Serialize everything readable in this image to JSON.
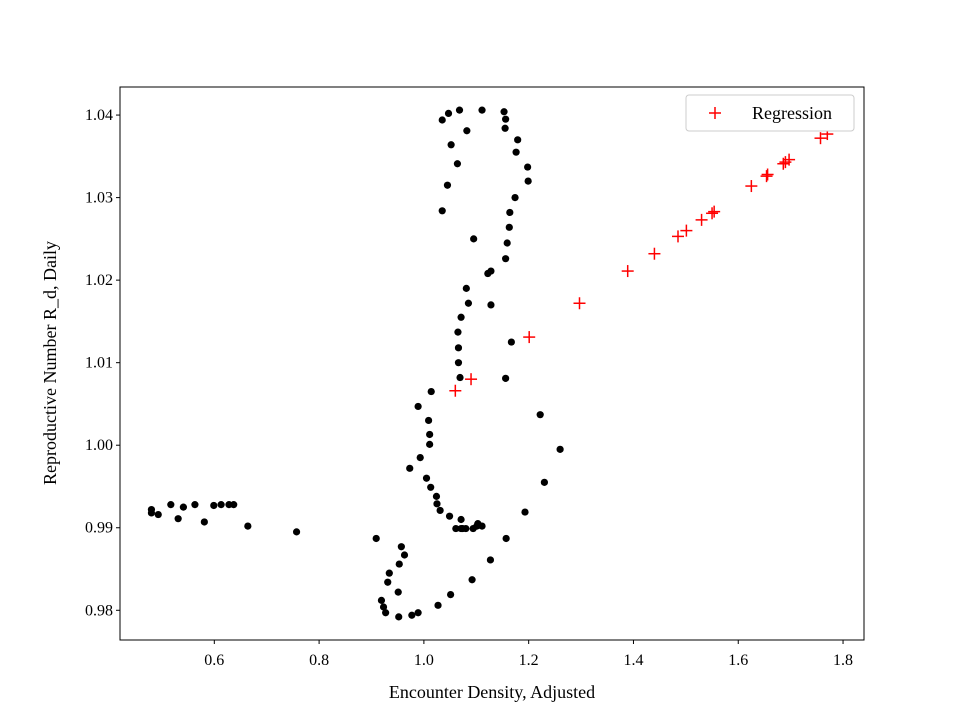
{
  "chart_data": {
    "type": "scatter",
    "title": "",
    "xlabel": "Encounter Density, Adjusted",
    "ylabel": "Reproductive Number R_d, Daily",
    "xlim": [
      0.42,
      1.84
    ],
    "ylim": [
      0.9764,
      1.0434
    ],
    "xticks": [
      0.6,
      0.8,
      1.0,
      1.2,
      1.4,
      1.6,
      1.8
    ],
    "xtick_labels": [
      "0.6",
      "0.8",
      "1.0",
      "1.2",
      "1.4",
      "1.6",
      "1.8"
    ],
    "yticks": [
      0.98,
      0.99,
      1.0,
      1.01,
      1.02,
      1.03,
      1.04
    ],
    "ytick_labels": [
      "0.98",
      "0.99",
      "1.00",
      "1.01",
      "1.02",
      "1.03",
      "1.04"
    ],
    "grid": false,
    "legend_position": "top-right",
    "series": [
      {
        "marker": "dot",
        "color": "#000000",
        "points": [
          [
            0.48,
            0.9922
          ],
          [
            0.48,
            0.9918
          ],
          [
            0.493,
            0.9916
          ],
          [
            0.517,
            0.9928
          ],
          [
            0.531,
            0.9911
          ],
          [
            0.541,
            0.9925
          ],
          [
            0.563,
            0.9928
          ],
          [
            0.581,
            0.9907
          ],
          [
            0.599,
            0.9927
          ],
          [
            0.613,
            0.9928
          ],
          [
            0.628,
            0.9928
          ],
          [
            0.637,
            0.9928
          ],
          [
            0.664,
            0.9902
          ],
          [
            0.757,
            0.9895
          ],
          [
            0.909,
            0.9887
          ],
          [
            0.919,
            0.9812
          ],
          [
            0.923,
            0.9804
          ],
          [
            0.927,
            0.9797
          ],
          [
            0.931,
            0.9834
          ],
          [
            0.934,
            0.9845
          ],
          [
            0.952,
            0.9792
          ],
          [
            0.951,
            0.9822
          ],
          [
            0.953,
            0.9856
          ],
          [
            0.957,
            0.9877
          ],
          [
            0.963,
            0.9867
          ],
          [
            0.973,
            0.9972
          ],
          [
            0.977,
            0.9794
          ],
          [
            0.989,
            0.9797
          ],
          [
            0.989,
            1.0047
          ],
          [
            0.993,
            0.9985
          ],
          [
            1.005,
            0.996
          ],
          [
            1.009,
            1.003
          ],
          [
            1.011,
            1.0001
          ],
          [
            1.011,
            1.0013
          ],
          [
            1.013,
            0.9949
          ],
          [
            1.014,
            1.0065
          ],
          [
            1.024,
            0.9938
          ],
          [
            1.025,
            0.9929
          ],
          [
            1.027,
            0.9806
          ],
          [
            1.031,
            0.9921
          ],
          [
            1.035,
            1.0394
          ],
          [
            1.035,
            1.0284
          ],
          [
            1.045,
            1.0315
          ],
          [
            1.047,
            1.0402
          ],
          [
            1.049,
            0.9914
          ],
          [
            1.051,
            0.9819
          ],
          [
            1.052,
            1.0364
          ],
          [
            1.061,
            0.9899
          ],
          [
            1.064,
            1.0341
          ],
          [
            1.065,
            1.0137
          ],
          [
            1.066,
            1.0118
          ],
          [
            1.066,
            1.01
          ],
          [
            1.068,
            1.0406
          ],
          [
            1.069,
            1.0082
          ],
          [
            1.071,
            1.0155
          ],
          [
            1.071,
            0.991
          ],
          [
            1.071,
            0.9899
          ],
          [
            1.074,
            0.9899
          ],
          [
            1.08,
            0.9899
          ],
          [
            1.081,
            1.019
          ],
          [
            1.082,
            1.0381
          ],
          [
            1.085,
            1.0172
          ],
          [
            1.092,
            0.9837
          ],
          [
            1.094,
            0.9899
          ],
          [
            1.095,
            1.025
          ],
          [
            1.101,
            0.9902
          ],
          [
            1.103,
            0.9905
          ],
          [
            1.111,
            0.9902
          ],
          [
            1.111,
            1.0406
          ],
          [
            1.122,
            1.0208
          ],
          [
            1.127,
            0.9861
          ],
          [
            1.128,
            1.017
          ],
          [
            1.128,
            1.0211
          ],
          [
            1.153,
            1.0404
          ],
          [
            1.155,
            1.0384
          ],
          [
            1.156,
            1.0226
          ],
          [
            1.156,
            1.0081
          ],
          [
            1.156,
            1.0395
          ],
          [
            1.157,
            0.9887
          ],
          [
            1.159,
            1.0245
          ],
          [
            1.163,
            1.0264
          ],
          [
            1.164,
            1.0282
          ],
          [
            1.167,
            1.0125
          ],
          [
            1.174,
            1.03
          ],
          [
            1.176,
            1.0355
          ],
          [
            1.179,
            1.037
          ],
          [
            1.193,
            0.9919
          ],
          [
            1.198,
            1.0337
          ],
          [
            1.199,
            1.032
          ],
          [
            1.222,
            1.0037
          ],
          [
            1.23,
            0.9955
          ],
          [
            1.26,
            0.9995
          ]
        ]
      },
      {
        "name": "Regression",
        "marker": "plus",
        "color": "#ff0000",
        "points": [
          [
            1.06,
            1.0066
          ],
          [
            1.09,
            1.008
          ],
          [
            1.201,
            1.0131
          ],
          [
            1.297,
            1.0172
          ],
          [
            1.389,
            1.0211
          ],
          [
            1.44,
            1.0232
          ],
          [
            1.485,
            1.0253
          ],
          [
            1.501,
            1.026
          ],
          [
            1.53,
            1.0273
          ],
          [
            1.55,
            1.0281
          ],
          [
            1.554,
            1.0283
          ],
          [
            1.625,
            1.0314
          ],
          [
            1.654,
            1.0326
          ],
          [
            1.656,
            1.0328
          ],
          [
            1.686,
            1.0341
          ],
          [
            1.69,
            1.0343
          ],
          [
            1.697,
            1.0346
          ],
          [
            1.757,
            1.0372
          ],
          [
            1.77,
            1.0377
          ]
        ]
      }
    ]
  }
}
